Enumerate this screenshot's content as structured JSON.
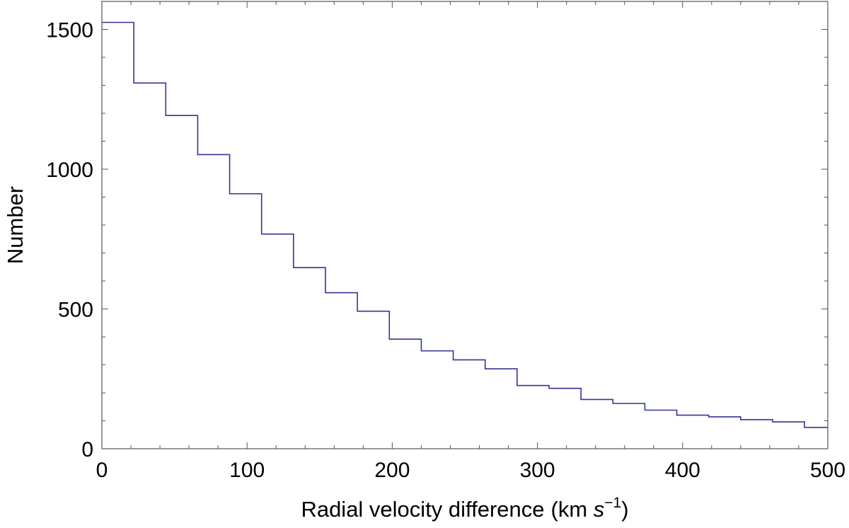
{
  "chart_data": {
    "type": "histogram",
    "title": "",
    "xlabel": "Radial velocity difference",
    "xlabel_unit_prefix": "(km ",
    "xlabel_unit_var": "s",
    "xlabel_unit_exp": "−1",
    "xlabel_unit_suffix": ")",
    "ylabel": "Number",
    "xlim": [
      0,
      500
    ],
    "ylim": [
      0,
      1600
    ],
    "x_major_ticks": [
      0,
      100,
      200,
      300,
      400,
      500
    ],
    "x_minor_ticks": [
      20,
      40,
      60,
      80,
      120,
      140,
      160,
      180,
      220,
      240,
      260,
      280,
      320,
      340,
      360,
      380,
      420,
      440,
      460,
      480
    ],
    "x_tick_labels": [
      "0",
      "100",
      "200",
      "300",
      "400",
      "500"
    ],
    "y_major_ticks": [
      0,
      500,
      1000,
      1500
    ],
    "y_minor_ticks": [
      100,
      200,
      300,
      400,
      600,
      700,
      800,
      900,
      1100,
      1200,
      1300,
      1400
    ],
    "y_tick_labels": [
      "0",
      "500",
      "1000",
      "1500"
    ],
    "bin_width": 22,
    "bin_edges": [
      0,
      22,
      44,
      66,
      88,
      110,
      132,
      154,
      176,
      198,
      220,
      242,
      264,
      286,
      308,
      330,
      352,
      374,
      396,
      418,
      440,
      462,
      484,
      500
    ],
    "counts": [
      1525,
      1308,
      1192,
      1052,
      912,
      768,
      648,
      558,
      492,
      392,
      350,
      318,
      286,
      226,
      216,
      176,
      162,
      138,
      120,
      114,
      104,
      96,
      76
    ],
    "series_color": "#33339a",
    "grid": false,
    "legend": "none"
  }
}
